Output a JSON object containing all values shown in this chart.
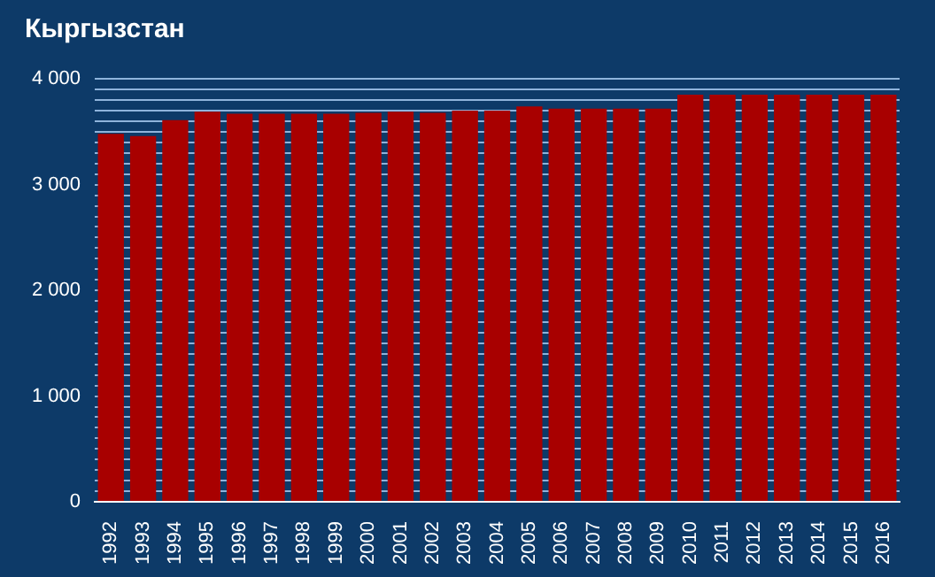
{
  "chart_data": {
    "type": "bar",
    "title": "Кыргызстан",
    "categories": [
      "1992",
      "1993",
      "1994",
      "1995",
      "1996",
      "1997",
      "1998",
      "1999",
      "2000",
      "2001",
      "2002",
      "2003",
      "2004",
      "2005",
      "2006",
      "2007",
      "2008",
      "2009",
      "2010",
      "2011",
      "2012",
      "2013",
      "2014",
      "2015",
      "2016"
    ],
    "values": [
      3480,
      3460,
      3610,
      3690,
      3670,
      3670,
      3670,
      3670,
      3680,
      3690,
      3680,
      3700,
      3700,
      3740,
      3720,
      3720,
      3720,
      3720,
      3850,
      3850,
      3850,
      3850,
      3850,
      3850,
      3850
    ],
    "color": "#a80000",
    "ylim": [
      0,
      4000
    ],
    "yticks": [
      {
        "value": 0,
        "label": "0"
      },
      {
        "value": 100,
        "label": null
      },
      {
        "value": 200,
        "label": null
      },
      {
        "value": 300,
        "label": null
      },
      {
        "value": 400,
        "label": null
      },
      {
        "value": 500,
        "label": null
      },
      {
        "value": 600,
        "label": null
      },
      {
        "value": 700,
        "label": null
      },
      {
        "value": 800,
        "label": null
      },
      {
        "value": 900,
        "label": null
      },
      {
        "value": 1000,
        "label": "1 000"
      },
      {
        "value": 1100,
        "label": null
      },
      {
        "value": 1200,
        "label": null
      },
      {
        "value": 1300,
        "label": null
      },
      {
        "value": 1400,
        "label": null
      },
      {
        "value": 1500,
        "label": null
      },
      {
        "value": 1600,
        "label": null
      },
      {
        "value": 1700,
        "label": null
      },
      {
        "value": 1800,
        "label": null
      },
      {
        "value": 1900,
        "label": null
      },
      {
        "value": 2000,
        "label": "2 000"
      },
      {
        "value": 2100,
        "label": null
      },
      {
        "value": 2200,
        "label": null
      },
      {
        "value": 2300,
        "label": null
      },
      {
        "value": 2400,
        "label": null
      },
      {
        "value": 2500,
        "label": null
      },
      {
        "value": 2600,
        "label": null
      },
      {
        "value": 2700,
        "label": null
      },
      {
        "value": 2800,
        "label": null
      },
      {
        "value": 2900,
        "label": null
      },
      {
        "value": 3000,
        "label": "3 000"
      },
      {
        "value": 3100,
        "label": null
      },
      {
        "value": 3200,
        "label": null
      },
      {
        "value": 3300,
        "label": null
      },
      {
        "value": 3400,
        "label": null
      },
      {
        "value": 3500,
        "label": null
      },
      {
        "value": 3600,
        "label": null
      },
      {
        "value": 3700,
        "label": null
      },
      {
        "value": 3800,
        "label": null
      },
      {
        "value": 3900,
        "label": null
      },
      {
        "value": 4000,
        "label": "4 000"
      }
    ],
    "grid": "y"
  }
}
